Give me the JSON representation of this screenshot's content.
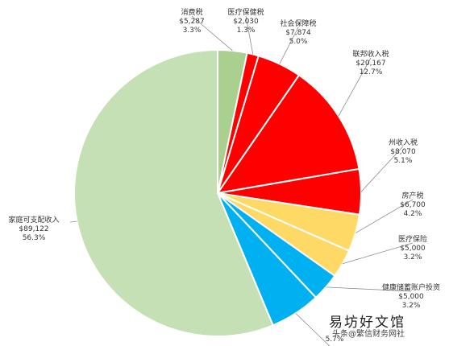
{
  "chart_data": {
    "type": "pie",
    "title": "",
    "slices": [
      {
        "label": "消费税",
        "amount": "$5,287",
        "percent_text": "3.3%",
        "value": 3.3,
        "color": "#a9d08e"
      },
      {
        "label": "医疗保健税",
        "amount": "$2,030",
        "percent_text": "1.3%",
        "value": 1.3,
        "color": "#ff0000"
      },
      {
        "label": "社会保障税",
        "amount": "$7,874",
        "percent_text": "5.0%",
        "value": 5.0,
        "color": "#ff0000"
      },
      {
        "label": "联邦收入税",
        "amount": "$20,167",
        "percent_text": "12.7%",
        "value": 12.7,
        "color": "#ff0000"
      },
      {
        "label": "州收入税",
        "amount": "$8,070",
        "percent_text": "5.1%",
        "value": 5.1,
        "color": "#ff0000"
      },
      {
        "label": "房产税",
        "amount": "$6,700",
        "percent_text": "4.2%",
        "value": 4.2,
        "color": "#ffd966"
      },
      {
        "label": "医疗保险",
        "amount": "$5,000",
        "percent_text": "3.2%",
        "value": 3.2,
        "color": "#ffd966"
      },
      {
        "label": "健康储蓄账户投资",
        "amount": "$5,000",
        "percent_text": "3.2%",
        "value": 3.2,
        "color": "#00b0f0"
      },
      {
        "label": "",
        "amount": "",
        "percent_text": "5.7%",
        "value": 5.7,
        "color": "#00b0f0"
      },
      {
        "label": "家庭可支配收入",
        "amount": "$89,122",
        "percent_text": "56.3%",
        "value": 56.3,
        "color": "#c5e0b4"
      }
    ]
  },
  "watermark": {
    "main": "易坊好文馆",
    "sub": "头条@繁信财务网社"
  }
}
